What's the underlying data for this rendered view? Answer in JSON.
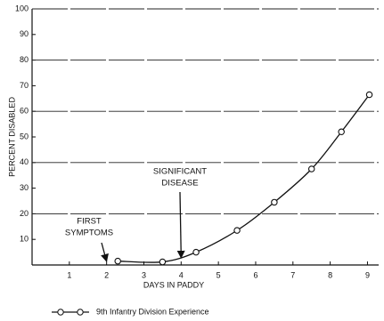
{
  "chart_data": {
    "type": "line",
    "x_label": "DAYS IN PADDY",
    "y_label": "PERCENT DISABLED",
    "series": [
      {
        "name": "9th Infantry Division Experience",
        "color": "#111111",
        "x": [
          2.3,
          3.5,
          4.4,
          5.5,
          6.5,
          7.5,
          8.3,
          9.05
        ],
        "values": [
          1.5,
          1.2,
          5,
          13.5,
          24.5,
          37.5,
          52,
          66.5
        ]
      }
    ],
    "xlim": [
      0,
      9.3
    ],
    "xticks": [
      1,
      2,
      3,
      4,
      5,
      6,
      7,
      8,
      9
    ],
    "ylim": [
      0,
      100
    ],
    "yticks": [
      10,
      20,
      30,
      40,
      50,
      60,
      70,
      80,
      90,
      100
    ],
    "grid": true,
    "annotations": [
      {
        "lines": [
          "FIRST",
          "SYMPTOMS"
        ],
        "x": 2
      },
      {
        "lines": [
          "SIGNIFICANT",
          "DISEASE"
        ],
        "x": 4
      }
    ]
  }
}
